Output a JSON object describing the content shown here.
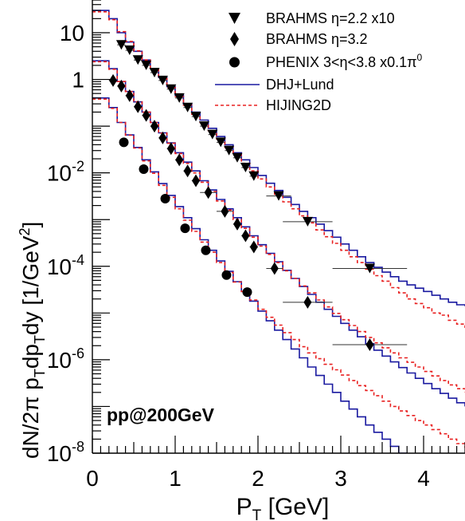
{
  "chart_data": {
    "type": "scatter",
    "annotation": "pp@200GeV",
    "xlabel": "P",
    "xlabel_sub": "T",
    "xlabel_unit": " [GeV]",
    "ylabel_parts": [
      "dN/2π p",
      "T",
      "dp",
      "T",
      "dy [1/GeV",
      "2",
      "]"
    ],
    "xlim": [
      0,
      4.5
    ],
    "ylim_log10": [
      -8,
      1.7
    ],
    "yscale": "log",
    "x_ticks": [
      "0",
      "1",
      "2",
      "3",
      "4"
    ],
    "y_ticks": [
      {
        "mantissa": "10",
        "exp": "-8",
        "log": -8
      },
      {
        "mantissa": "10",
        "exp": "-6",
        "log": -6
      },
      {
        "mantissa": "10",
        "exp": "-4",
        "log": -4
      },
      {
        "mantissa": "10",
        "exp": "-2",
        "log": -2
      },
      {
        "mantissa": "1",
        "exp": "",
        "log": 0
      },
      {
        "mantissa": "10",
        "exp": "",
        "log": 1
      }
    ],
    "legend": {
      "placement": "top-right",
      "entries": [
        {
          "label": "BRAHMS η=2.2 x10",
          "marker": "down-triangle"
        },
        {
          "label": "BRAHMS η=3.2",
          "marker": "diamond"
        },
        {
          "label": "PHENIX 3<η<3.8 x0.1",
          "label_suffix": "π",
          "label_sup": "0",
          "marker": "circle"
        },
        {
          "label": "DHJ+Lund",
          "marker": "line",
          "color": "#1a1aa0",
          "style": "solid"
        },
        {
          "label": "HIJING2D",
          "marker": "line",
          "color": "#e82020",
          "style": "dashed"
        }
      ]
    },
    "series": [
      {
        "name": "BRAHMS η=2.2 x10",
        "marker": "down-triangle",
        "points": [
          {
            "x": 0.35,
            "y": 5.5,
            "xerr": 0.05
          },
          {
            "x": 0.45,
            "y": 4.2,
            "xerr": 0.05
          },
          {
            "x": 0.55,
            "y": 2.6,
            "xerr": 0.05
          },
          {
            "x": 0.65,
            "y": 2.0,
            "xerr": 0.05
          },
          {
            "x": 0.75,
            "y": 1.4,
            "xerr": 0.05
          },
          {
            "x": 0.85,
            "y": 0.95,
            "xerr": 0.05
          },
          {
            "x": 0.95,
            "y": 0.62,
            "xerr": 0.05
          },
          {
            "x": 1.05,
            "y": 0.4,
            "xerr": 0.05
          },
          {
            "x": 1.15,
            "y": 0.25,
            "xerr": 0.05
          },
          {
            "x": 1.25,
            "y": 0.16,
            "xerr": 0.05
          },
          {
            "x": 1.35,
            "y": 0.1,
            "xerr": 0.05
          },
          {
            "x": 1.45,
            "y": 0.066,
            "xerr": 0.05
          },
          {
            "x": 1.55,
            "y": 0.045,
            "xerr": 0.05
          },
          {
            "x": 1.65,
            "y": 0.03,
            "xerr": 0.05
          },
          {
            "x": 1.75,
            "y": 0.021,
            "xerr": 0.05
          },
          {
            "x": 1.85,
            "y": 0.013,
            "xerr": 0.05
          },
          {
            "x": 1.95,
            "y": 0.0085,
            "xerr": 0.05
          },
          {
            "x": 2.25,
            "y": 0.0032,
            "xerr": 0.15
          },
          {
            "x": 2.6,
            "y": 0.0009,
            "xerr": 0.3
          },
          {
            "x": 3.35,
            "y": 9e-05,
            "xerr": 0.45
          }
        ]
      },
      {
        "name": "BRAHMS η=3.2",
        "marker": "diamond",
        "points": [
          {
            "x": 0.25,
            "y": 0.95,
            "xerr": 0.05
          },
          {
            "x": 0.35,
            "y": 0.72,
            "xerr": 0.05
          },
          {
            "x": 0.45,
            "y": 0.45,
            "xerr": 0.05
          },
          {
            "x": 0.55,
            "y": 0.26,
            "xerr": 0.05
          },
          {
            "x": 0.65,
            "y": 0.17,
            "xerr": 0.05
          },
          {
            "x": 0.75,
            "y": 0.1,
            "xerr": 0.05
          },
          {
            "x": 0.85,
            "y": 0.056,
            "xerr": 0.05
          },
          {
            "x": 0.95,
            "y": 0.033,
            "xerr": 0.05
          },
          {
            "x": 1.05,
            "y": 0.019,
            "xerr": 0.05
          },
          {
            "x": 1.15,
            "y": 0.011,
            "xerr": 0.05
          },
          {
            "x": 1.25,
            "y": 0.0068,
            "xerr": 0.05
          },
          {
            "x": 1.4,
            "y": 0.0038,
            "xerr": 0.1
          },
          {
            "x": 1.6,
            "y": 0.0015,
            "xerr": 0.1
          },
          {
            "x": 1.75,
            "y": 0.0008,
            "xerr": 0.05
          },
          {
            "x": 1.85,
            "y": 0.00045,
            "xerr": 0.05
          },
          {
            "x": 1.95,
            "y": 0.00026,
            "xerr": 0.05
          },
          {
            "x": 2.2,
            "y": 9e-05,
            "xerr": 0.1
          },
          {
            "x": 2.6,
            "y": 1.7e-05,
            "xerr": 0.3
          },
          {
            "x": 3.35,
            "y": 2.1e-06,
            "xerr": 0.45
          }
        ]
      },
      {
        "name": "PHENIX 3<η<3.8 x0.1",
        "marker": "circle",
        "points": [
          {
            "x": 0.38,
            "y": 0.045,
            "xerr": 0.0
          },
          {
            "x": 0.62,
            "y": 0.012,
            "xerr": 0.0
          },
          {
            "x": 0.88,
            "y": 0.0028,
            "xerr": 0.0
          },
          {
            "x": 1.12,
            "y": 0.00065,
            "xerr": 0.0
          },
          {
            "x": 1.37,
            "y": 0.00022,
            "xerr": 0.0
          },
          {
            "x": 1.62,
            "y": 6.5e-05,
            "xerr": 0.0
          },
          {
            "x": 1.87,
            "y": 2.8e-05,
            "xerr": 0.0
          }
        ]
      }
    ],
    "curves": [
      {
        "name": "DHJ+Lund",
        "color": "#1a1aa0",
        "style": "solid",
        "group": "upper",
        "x": [
          0,
          0.2,
          0.3,
          0.4,
          0.5,
          0.6,
          0.7,
          0.8,
          0.9,
          1.0,
          1.1,
          1.2,
          1.3,
          1.4,
          1.5,
          1.6,
          1.7,
          1.8,
          1.9,
          2.0,
          2.1,
          2.2,
          2.3,
          2.4,
          2.5,
          2.6,
          2.7,
          2.8,
          2.9,
          3.0,
          3.1,
          3.2,
          3.3,
          3.4,
          3.5,
          3.6,
          3.7,
          3.8,
          3.9,
          4.0,
          4.1,
          4.2,
          4.3,
          4.4,
          4.5
        ],
        "y": [
          30,
          20,
          10,
          6.3,
          4.0,
          2.6,
          1.7,
          1.1,
          0.7,
          0.46,
          0.3,
          0.2,
          0.135,
          0.09,
          0.06,
          0.04,
          0.027,
          0.019,
          0.013,
          0.0088,
          0.006,
          0.0042,
          0.003,
          0.0021,
          0.0015,
          0.0011,
          0.0008,
          0.00058,
          0.00042,
          0.0003,
          0.00022,
          0.00016,
          0.00012,
          9.5e-05,
          7.5e-05,
          6e-05,
          4.8e-05,
          4e-05,
          3.4e-05,
          2.9e-05,
          2.4e-05,
          2e-05,
          1.7e-05,
          1.5e-05,
          1.4e-05
        ]
      },
      {
        "name": "HIJING2D",
        "color": "#e82020",
        "style": "dashed",
        "group": "upper",
        "x": [
          0,
          0.2,
          0.3,
          0.4,
          0.5,
          0.6,
          0.7,
          0.8,
          0.9,
          1.0,
          1.1,
          1.2,
          1.3,
          1.4,
          1.5,
          1.6,
          1.7,
          1.8,
          1.9,
          2.0,
          2.1,
          2.2,
          2.3,
          2.4,
          2.5,
          2.6,
          2.7,
          2.8,
          2.9,
          3.0,
          3.1,
          3.2,
          3.3,
          3.4,
          3.5,
          3.6,
          3.7,
          3.8,
          3.9,
          4.0,
          4.1,
          4.2,
          4.3,
          4.4,
          4.5
        ],
        "y": [
          28,
          19,
          10.5,
          6.5,
          4.1,
          2.6,
          1.65,
          1.05,
          0.67,
          0.43,
          0.28,
          0.18,
          0.12,
          0.08,
          0.053,
          0.035,
          0.024,
          0.016,
          0.011,
          0.0074,
          0.005,
          0.0035,
          0.0024,
          0.0017,
          0.0012,
          0.00085,
          0.0006,
          0.00043,
          0.00031,
          0.00022,
          0.00016,
          0.00012,
          8.7e-05,
          6.3e-05,
          4.8e-05,
          3.5e-05,
          2.7e-05,
          2e-05,
          1.6e-05,
          1.3e-05,
          1e-05,
          9e-06,
          7e-06,
          5.8e-06,
          4.8e-06
        ]
      },
      {
        "name": "DHJ+Lund",
        "color": "#1a1aa0",
        "style": "solid",
        "group": "middle",
        "x": [
          0,
          0.2,
          0.3,
          0.4,
          0.5,
          0.6,
          0.7,
          0.8,
          0.9,
          1.0,
          1.1,
          1.2,
          1.3,
          1.4,
          1.5,
          1.6,
          1.7,
          1.8,
          1.9,
          2.0,
          2.1,
          2.2,
          2.3,
          2.4,
          2.5,
          2.6,
          2.7,
          2.8,
          2.9,
          3.0,
          3.1,
          3.2,
          3.3,
          3.4,
          3.5,
          3.6,
          3.7,
          3.8,
          3.9,
          4.0,
          4.1,
          4.2,
          4.3,
          4.4,
          4.5
        ],
        "y": [
          2.5,
          1.7,
          0.9,
          0.55,
          0.33,
          0.2,
          0.12,
          0.072,
          0.044,
          0.027,
          0.017,
          0.011,
          0.0068,
          0.0043,
          0.0027,
          0.0017,
          0.0011,
          0.0007,
          0.00045,
          0.00029,
          0.00019,
          0.000125,
          8.2e-05,
          5.5e-05,
          3.7e-05,
          2.5e-05,
          1.7e-05,
          1.2e-05,
          8.5e-06,
          6e-06,
          4.3e-06,
          3.1e-06,
          2.2e-06,
          1.6e-06,
          1.2e-06,
          9e-07,
          6.8e-07,
          5.2e-07,
          4e-07,
          3.1e-07,
          2.4e-07,
          1.9e-07,
          1.5e-07,
          1.2e-07,
          1e-07
        ]
      },
      {
        "name": "HIJING2D",
        "color": "#e82020",
        "style": "dashed",
        "group": "middle",
        "x": [
          0,
          0.2,
          0.3,
          0.4,
          0.5,
          0.6,
          0.7,
          0.8,
          0.9,
          1.0,
          1.1,
          1.2,
          1.3,
          1.4,
          1.5,
          1.6,
          1.7,
          1.8,
          1.9,
          2.0,
          2.1,
          2.2,
          2.3,
          2.4,
          2.5,
          2.6,
          2.7,
          2.8,
          2.9,
          3.0,
          3.1,
          3.2,
          3.3,
          3.4,
          3.5,
          3.6,
          3.7,
          3.8,
          3.9,
          4.0,
          4.1,
          4.2,
          4.3,
          4.4,
          4.5
        ],
        "y": [
          2.4,
          1.65,
          0.9,
          0.55,
          0.33,
          0.2,
          0.12,
          0.071,
          0.043,
          0.026,
          0.016,
          0.01,
          0.0063,
          0.004,
          0.0025,
          0.0016,
          0.001,
          0.00065,
          0.00042,
          0.00027,
          0.00018,
          0.00012,
          8e-05,
          5.5e-05,
          3.8e-05,
          2.7e-05,
          1.9e-05,
          1.35e-05,
          9.8e-06,
          7.2e-06,
          5.4e-06,
          4e-06,
          3e-06,
          2.3e-06,
          1.8e-06,
          1.4e-06,
          1.1e-06,
          8.8e-07,
          7e-07,
          5.6e-07,
          4.5e-07,
          3.6e-07,
          2.9e-07,
          2.4e-07,
          2e-07
        ]
      },
      {
        "name": "DHJ+Lund",
        "color": "#1a1aa0",
        "style": "solid",
        "group": "lower",
        "x": [
          0,
          0.2,
          0.3,
          0.4,
          0.5,
          0.6,
          0.7,
          0.8,
          0.9,
          1.0,
          1.1,
          1.2,
          1.3,
          1.4,
          1.5,
          1.6,
          1.7,
          1.8,
          1.9,
          2.0,
          2.1,
          2.2,
          2.3,
          2.4,
          2.5,
          2.6,
          2.7,
          2.8,
          2.9,
          3.0,
          3.1,
          3.2,
          3.3,
          3.4,
          3.5,
          3.6,
          3.7,
          3.8,
          3.9,
          4.0,
          4.1,
          4.2,
          4.3,
          4.4,
          4.5
        ],
        "y": [
          0.4,
          0.25,
          0.12,
          0.065,
          0.035,
          0.019,
          0.0105,
          0.0059,
          0.0033,
          0.0019,
          0.0011,
          0.00064,
          0.00037,
          0.00022,
          0.00013,
          7.8e-05,
          4.7e-05,
          2.9e-05,
          1.8e-05,
          1.1e-05,
          6.8e-06,
          4.3e-06,
          2.7e-06,
          1.7e-06,
          1.1e-06,
          7e-07,
          4.6e-07,
          3e-07,
          2e-07,
          1.3e-07,
          8.8e-08,
          6e-08,
          4e-08,
          2.8e-08,
          2e-08,
          1.4e-08,
          1e-08,
          7.5e-09,
          5.5e-09,
          4e-09,
          3e-09,
          2.2e-09,
          1.6e-09,
          1.2e-09,
          1e-09
        ]
      },
      {
        "name": "HIJING2D",
        "color": "#e82020",
        "style": "dashed",
        "group": "lower",
        "x": [
          0,
          0.2,
          0.3,
          0.4,
          0.5,
          0.6,
          0.7,
          0.8,
          0.9,
          1.0,
          1.1,
          1.2,
          1.3,
          1.4,
          1.5,
          1.6,
          1.7,
          1.8,
          1.9,
          2.0,
          2.1,
          2.2,
          2.3,
          2.4,
          2.5,
          2.6,
          2.7,
          2.8,
          2.9,
          3.0,
          3.1,
          3.2,
          3.3,
          3.4,
          3.5,
          3.6,
          3.7,
          3.8,
          3.9,
          4.0,
          4.1,
          4.2,
          4.3,
          4.4,
          4.5
        ],
        "y": [
          0.38,
          0.24,
          0.12,
          0.064,
          0.034,
          0.018,
          0.0098,
          0.0054,
          0.003,
          0.0017,
          0.00097,
          0.00056,
          0.00033,
          0.0002,
          0.00012,
          7.4e-05,
          4.6e-05,
          2.9e-05,
          1.9e-05,
          1.2e-05,
          8.1e-06,
          5.5e-06,
          3.8e-06,
          2.7e-06,
          1.9e-06,
          1.4e-06,
          1.05e-06,
          8e-07,
          6.1e-07,
          4.7e-07,
          3.6e-07,
          2.8e-07,
          2.2e-07,
          1.7e-07,
          1.3e-07,
          1e-07,
          8e-08,
          6.4e-08,
          5e-08,
          4e-08,
          3.2e-08,
          2.6e-08,
          2e-08,
          1.6e-08,
          1.3e-08
        ]
      }
    ]
  }
}
